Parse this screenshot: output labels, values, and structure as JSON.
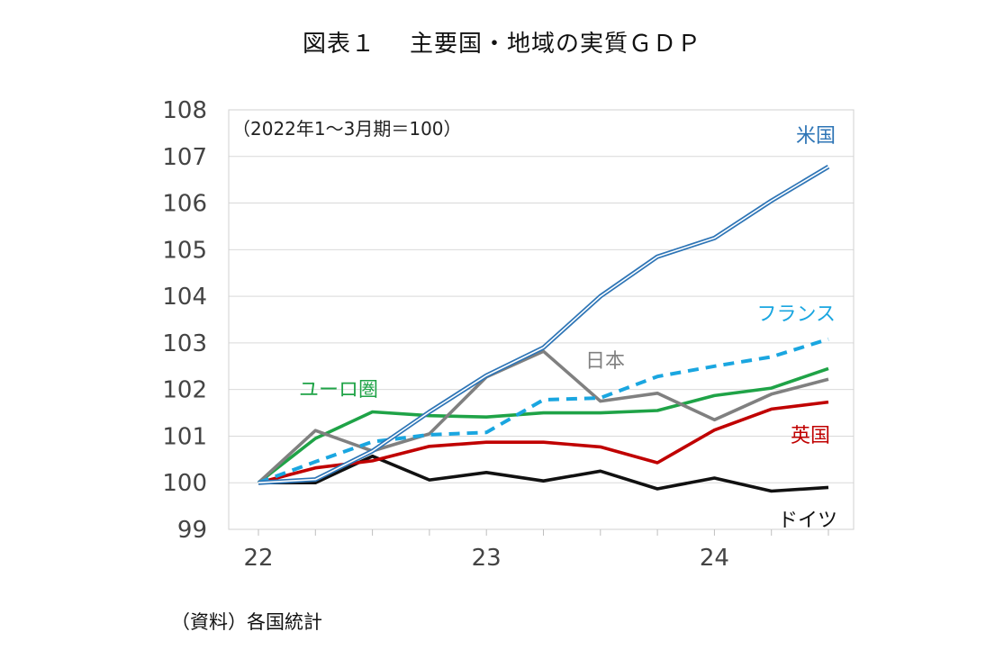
{
  "title": {
    "part1": "図表１",
    "part2": "主要国・地域の実質ＧＤＰ"
  },
  "source": "（資料）各国統計",
  "chart_data": {
    "type": "line",
    "note": "（2022年1～3月期＝100）",
    "ylim": [
      99,
      108
    ],
    "yticks": [
      99,
      100,
      101,
      102,
      103,
      104,
      105,
      106,
      107,
      108
    ],
    "x_index": [
      0,
      1,
      2,
      3,
      4,
      5,
      6,
      7,
      8,
      9,
      10
    ],
    "xtick_labels": [
      {
        "label": "22",
        "index": 0
      },
      {
        "label": "23",
        "index": 4
      },
      {
        "label": "24",
        "index": 8
      }
    ],
    "series": [
      {
        "name": "米国",
        "color": "#2e75b6",
        "style": "double",
        "values": [
          100.0,
          100.07,
          100.68,
          101.52,
          102.3,
          102.9,
          104.0,
          104.85,
          105.25,
          106.05,
          106.78
        ]
      },
      {
        "name": "フランス",
        "color": "#1aa6e0",
        "style": "dashed",
        "values": [
          100.0,
          100.45,
          100.88,
          101.03,
          101.08,
          101.78,
          101.82,
          102.28,
          102.5,
          102.7,
          103.08
        ]
      },
      {
        "name": "日本",
        "color": "#808080",
        "style": "solid",
        "values": [
          100.0,
          101.12,
          100.68,
          101.05,
          102.27,
          102.82,
          101.75,
          101.92,
          101.35,
          101.9,
          102.22
        ]
      },
      {
        "name": "ユーロ圏",
        "color": "#1fa347",
        "style": "solid",
        "values": [
          100.0,
          100.95,
          101.52,
          101.44,
          101.41,
          101.5,
          101.5,
          101.55,
          101.87,
          102.03,
          102.45
        ]
      },
      {
        "name": "英国",
        "color": "#c00000",
        "style": "solid",
        "values": [
          100.0,
          100.32,
          100.47,
          100.78,
          100.87,
          100.87,
          100.77,
          100.43,
          101.13,
          101.58,
          101.73
        ]
      },
      {
        "name": "ドイツ",
        "color": "#111111",
        "style": "solid",
        "values": [
          100.0,
          100.0,
          100.57,
          100.06,
          100.22,
          100.04,
          100.25,
          99.87,
          100.1,
          99.82,
          99.9
        ]
      }
    ]
  }
}
